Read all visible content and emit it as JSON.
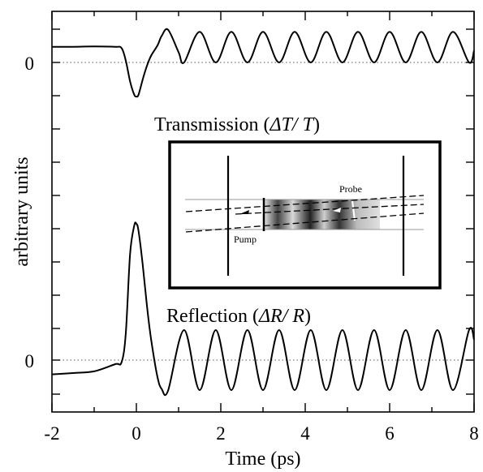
{
  "chart_data": {
    "type": "line",
    "title": "",
    "xlabel": "Time (ps)",
    "ylabel": "arbitrary units",
    "xlim": [
      -2,
      8
    ],
    "x_ticks": [
      -2,
      0,
      2,
      4,
      6,
      8
    ],
    "x_tick_labels": [
      "-2",
      "0",
      "2",
      "4",
      "6",
      "8"
    ],
    "y_tick_labels": [
      "0",
      "0"
    ],
    "grid": false,
    "y_reference_lines": "dotted zero baselines",
    "series": [
      {
        "name": "Transmission (ΔT/T)",
        "color": "#000000",
        "x": [
          -2.0,
          -1.5,
          -1.0,
          -0.5,
          -0.35,
          -0.25,
          -0.15,
          -0.05,
          0.0,
          0.05,
          0.15,
          0.25,
          0.35,
          0.5,
          0.6,
          0.75,
          1.0,
          1.13,
          1.5,
          1.88,
          2.25,
          2.63,
          3.0,
          3.38,
          3.75,
          4.13,
          4.5,
          4.88,
          5.25,
          5.63,
          6.0,
          6.38,
          6.75,
          7.13,
          7.5,
          7.88,
          8.0
        ],
        "y": [
          0.46,
          0.46,
          0.47,
          0.46,
          0.42,
          0.05,
          -0.55,
          -0.95,
          -1.0,
          -0.95,
          -0.5,
          -0.1,
          0.2,
          0.5,
          0.78,
          0.96,
          0.3,
          0.0,
          0.9,
          0.0,
          0.9,
          0.0,
          0.9,
          0.0,
          0.9,
          0.0,
          0.9,
          0.0,
          0.9,
          0.0,
          0.9,
          0.0,
          0.9,
          0.0,
          0.9,
          0.0,
          0.35
        ]
      },
      {
        "name": "Reflection (ΔR/R)",
        "color": "#000000",
        "x": [
          -2.0,
          -1.5,
          -1.0,
          -0.5,
          -0.35,
          -0.25,
          -0.15,
          -0.05,
          0.0,
          0.05,
          0.15,
          0.25,
          0.35,
          0.5,
          0.6,
          0.75,
          1.13,
          1.5,
          1.88,
          2.25,
          2.63,
          3.0,
          3.38,
          3.75,
          4.13,
          4.5,
          4.88,
          5.25,
          5.63,
          6.0,
          6.38,
          6.75,
          7.13,
          7.5,
          7.88,
          8.0
        ],
        "y": [
          -0.42,
          -0.38,
          -0.33,
          -0.12,
          -0.06,
          0.8,
          3.1,
          3.95,
          4.0,
          3.8,
          2.8,
          1.6,
          0.6,
          -0.5,
          -0.85,
          -0.9,
          0.88,
          -0.88,
          0.88,
          -0.88,
          0.88,
          -0.88,
          0.88,
          -0.88,
          0.88,
          -0.88,
          0.88,
          -0.88,
          0.88,
          -0.88,
          0.88,
          -0.88,
          0.88,
          -0.88,
          0.88,
          0.6
        ]
      }
    ],
    "annotations": {
      "transmission_label": "Transmission (",
      "transmission_symbol": "ΔT/ T",
      "reflection_label": "Reflection (",
      "reflection_symbol": "ΔR/ R",
      "inset_probe": "Probe",
      "inset_pump": "Pump"
    }
  }
}
